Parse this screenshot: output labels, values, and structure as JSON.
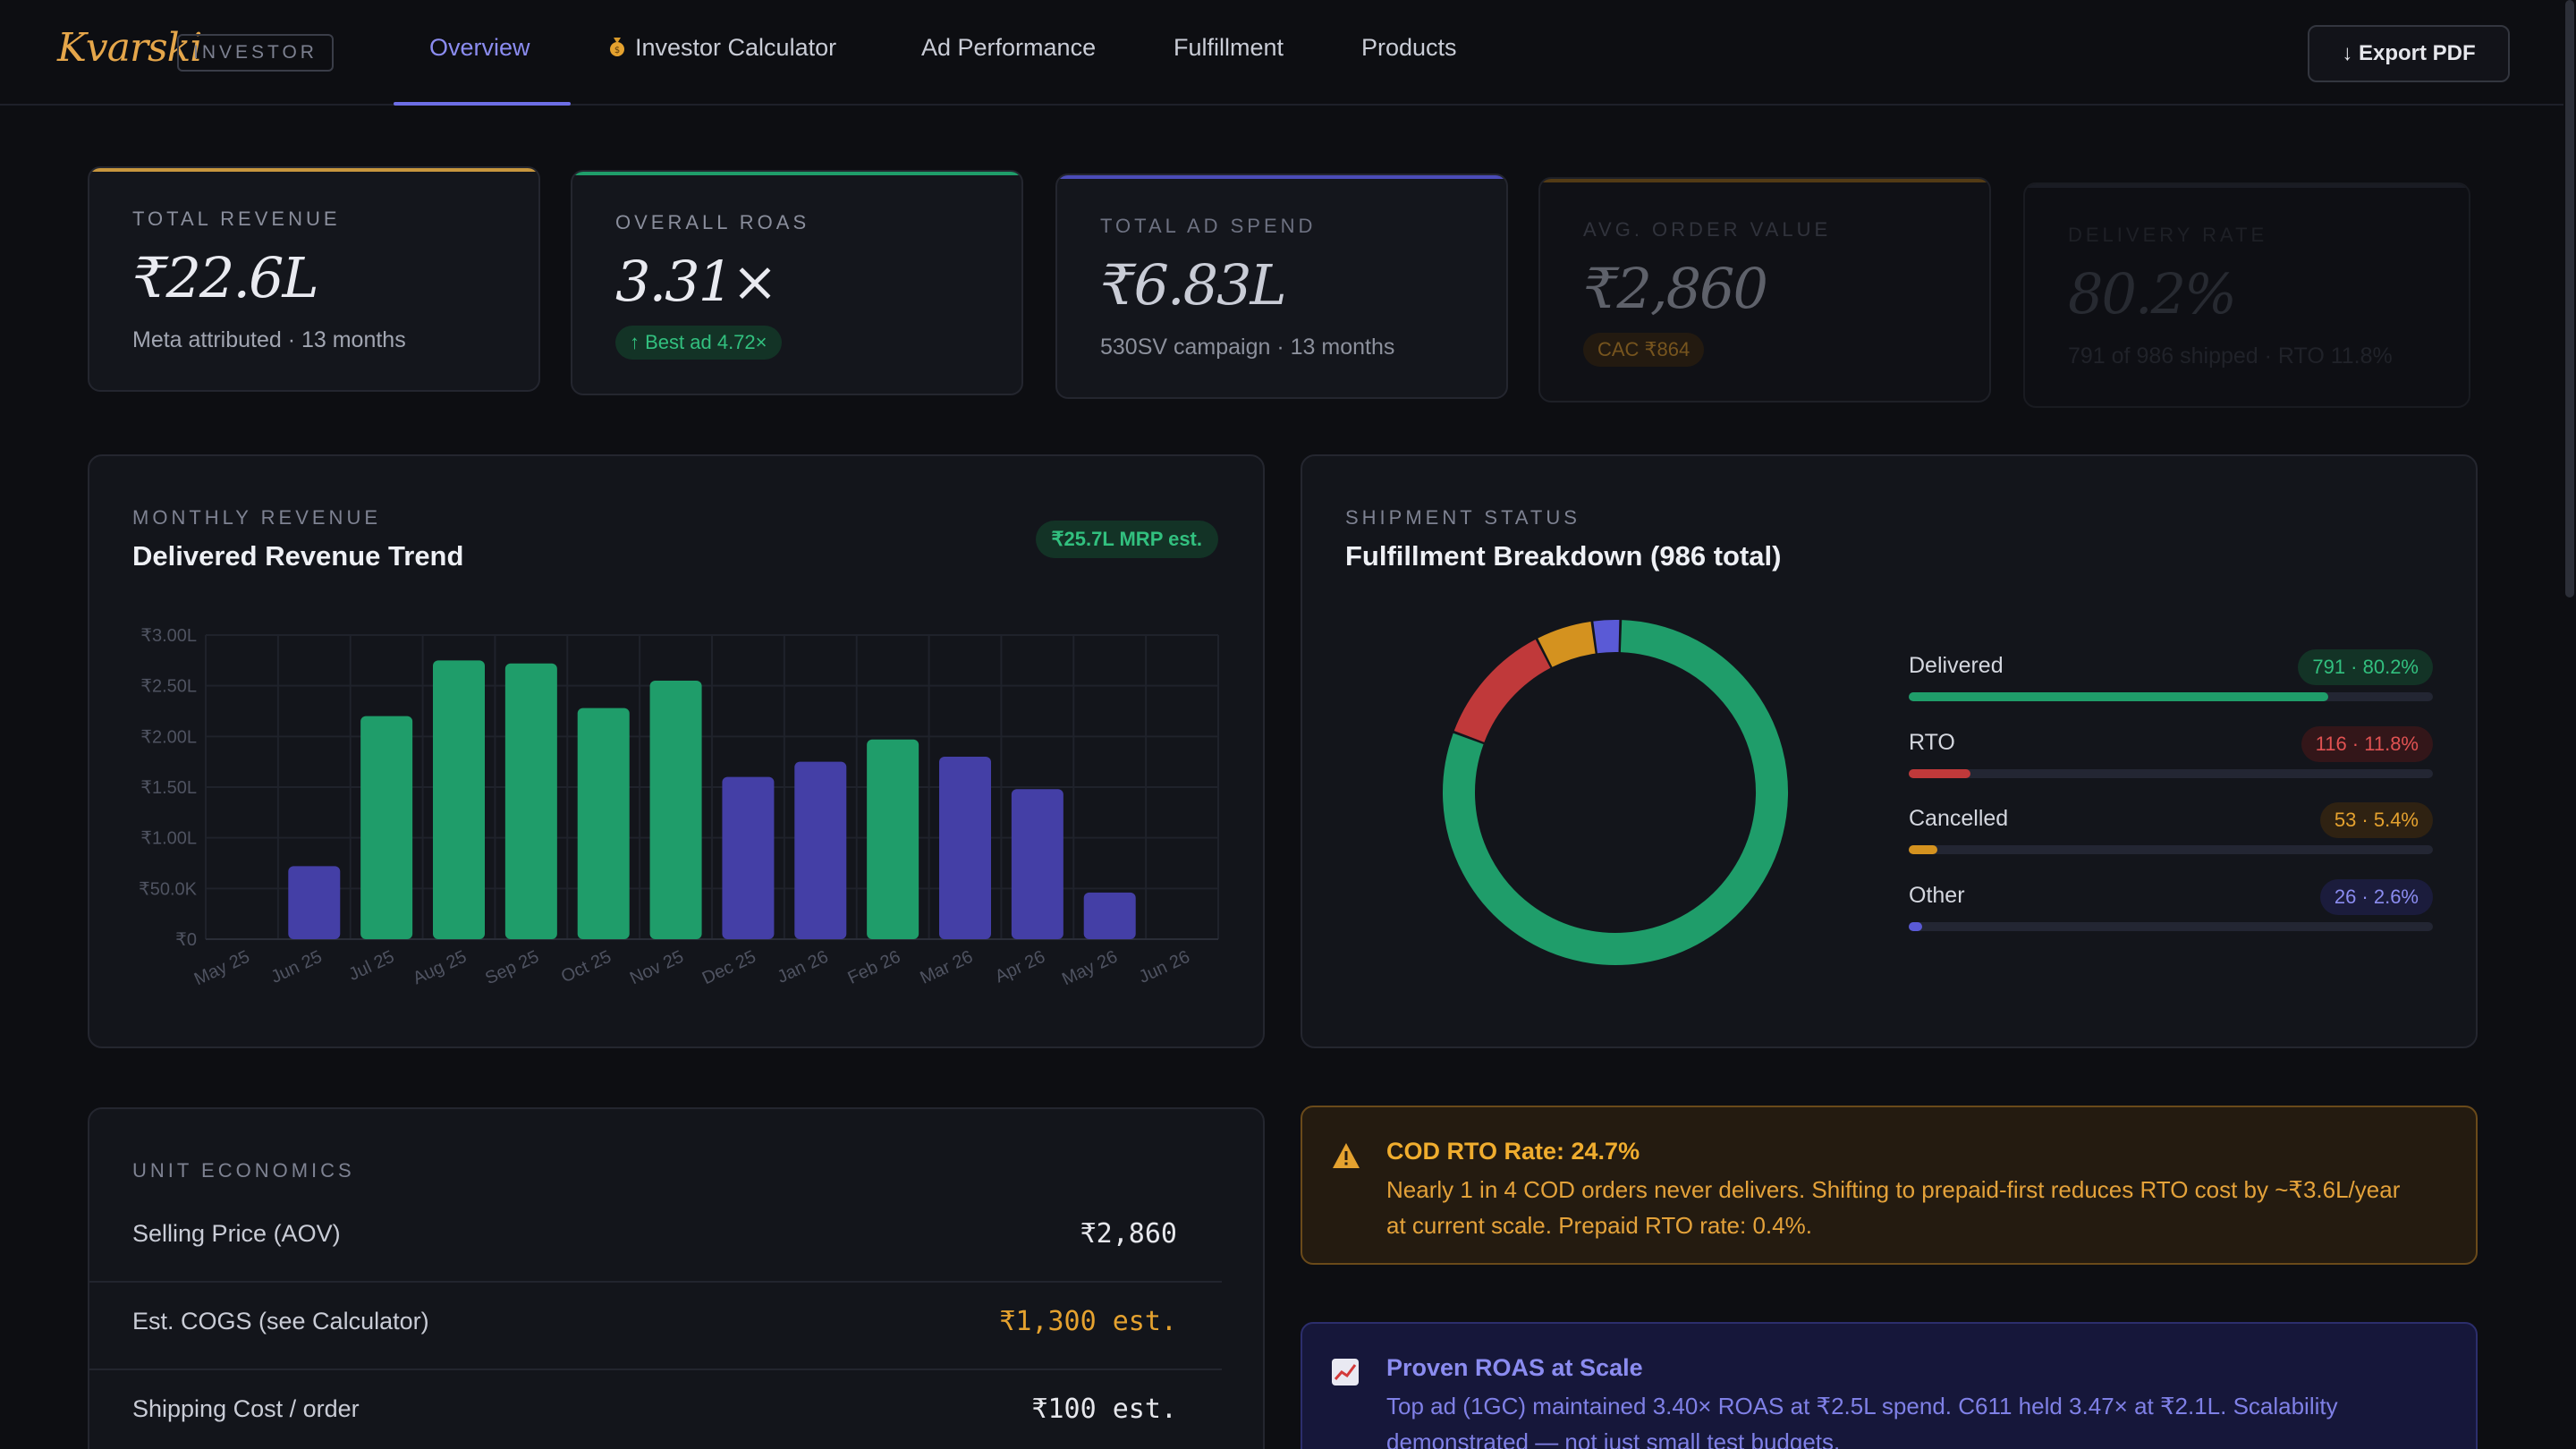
{
  "brand": {
    "logo": "Kvarski",
    "badge": "INVESTOR"
  },
  "nav": {
    "tabs": [
      {
        "label": "Overview"
      },
      {
        "label": "Investor Calculator",
        "icon": "money-bag-icon"
      },
      {
        "label": "Ad Performance"
      },
      {
        "label": "Fulfillment"
      },
      {
        "label": "Products"
      }
    ],
    "active_tab": "Overview",
    "export_label": "↓ Export PDF"
  },
  "kpis": [
    {
      "label": "TOTAL REVENUE",
      "value": "₹22.6L",
      "sub": "Meta attributed · 13 months",
      "accent": "#c7963e"
    },
    {
      "label": "OVERALL ROAS",
      "value": "3.31×",
      "pill": "↑ Best ad 4.72×",
      "accent": "#1f9d6a"
    },
    {
      "label": "TOTAL AD SPEND",
      "value": "₹6.83L",
      "sub": "530SV campaign · 13 months",
      "accent": "#4b4cb8"
    },
    {
      "label": "AVG. ORDER VALUE",
      "value": "₹2,860",
      "pill": "CAC ₹864",
      "accent": "#b07a22"
    },
    {
      "label": "DELIVERY RATE",
      "value": "80.2%",
      "sub": "791 of 986 shipped · RTO 11.8%",
      "accent": "#2a2d3a"
    }
  ],
  "revenue_panel": {
    "overline": "MONTHLY REVENUE",
    "title": "Delivered Revenue Trend",
    "pill": "₹25.7L MRP est."
  },
  "chart_data": {
    "type": "bar",
    "categories": [
      "May 25",
      "Jun 25",
      "Jul 25",
      "Aug 25",
      "Sep 25",
      "Oct 25",
      "Nov 25",
      "Dec 25",
      "Jan 26",
      "Feb 26",
      "Mar 26",
      "Apr 26",
      "May 26",
      "Jun 26"
    ],
    "values": [
      0,
      72000,
      220000,
      275000,
      272000,
      228000,
      255000,
      160000,
      175000,
      197000,
      180000,
      148000,
      46000,
      0
    ],
    "colors": [
      "#443fa6",
      "#443fa6",
      "#1f9d6a",
      "#1f9d6a",
      "#1f9d6a",
      "#1f9d6a",
      "#1f9d6a",
      "#443fa6",
      "#443fa6",
      "#1f9d6a",
      "#443fa6",
      "#443fa6",
      "#443fa6",
      "#443fa6"
    ],
    "ylim": [
      0,
      300000
    ],
    "yticks": [
      {
        "value": 0,
        "label": "₹0"
      },
      {
        "value": 50000,
        "label": "₹50.0K"
      },
      {
        "value": 100000,
        "label": "₹1.00L"
      },
      {
        "value": 150000,
        "label": "₹1.50L"
      },
      {
        "value": 200000,
        "label": "₹2.00L"
      },
      {
        "value": 250000,
        "label": "₹2.50L"
      },
      {
        "value": 300000,
        "label": "₹3.00L"
      }
    ],
    "grid": true,
    "legend": "none"
  },
  "fulfillment_panel": {
    "overline": "SHIPMENT STATUS",
    "title": "Fulfillment Breakdown (986 total)",
    "segments": [
      {
        "name": "Delivered",
        "badge": "791 · 80.2%",
        "count": 791,
        "pct": 80.2,
        "color": "#1f9d6a",
        "badge_bg": "#133326",
        "badge_fg": "#32c07f",
        "fill": 0.8
      },
      {
        "name": "RTO",
        "badge": "116 · 11.8%",
        "count": 116,
        "pct": 11.8,
        "color": "#c0393a",
        "badge_bg": "#331619",
        "badge_fg": "#e05252",
        "fill": 0.118
      },
      {
        "name": "Cancelled",
        "badge": "53 · 5.4%",
        "count": 53,
        "pct": 5.4,
        "color": "#d4921f",
        "badge_bg": "#2f2212",
        "badge_fg": "#e5a22f",
        "fill": 0.054
      },
      {
        "name": "Other",
        "badge": "26 · 2.6%",
        "count": 26,
        "pct": 2.6,
        "color": "#5a5ad6",
        "badge_bg": "#1b1c3c",
        "badge_fg": "#8b8cf0",
        "fill": 0.026
      }
    ]
  },
  "unit_economics": {
    "overline": "UNIT ECONOMICS",
    "rows": [
      {
        "label": "Selling Price (AOV)",
        "value": "₹2,860",
        "color": "#e6e7ec"
      },
      {
        "label": "Est. COGS (see Calculator)",
        "value": "₹1,300 est.",
        "color": "#e5a22f"
      },
      {
        "label": "Shipping Cost / order",
        "value": "₹100 est.",
        "color": "#e6e7ec"
      }
    ]
  },
  "alerts": {
    "warning": {
      "icon": "warning-icon",
      "title": "COD RTO Rate: 24.7%",
      "body": "Nearly 1 in 4 COD orders never delivers. Shifting to prepaid-first reduces RTO cost by ~₹3.6L/year at current scale. Prepaid RTO rate: 0.4%."
    },
    "info": {
      "icon": "chart-up-icon",
      "title": "Proven ROAS at Scale",
      "body": "Top ad (1GC) maintained 3.40× ROAS at ₹2.5L spend. C611 held 3.47× at ₹2.1L. Scalability demonstrated — not just small test budgets."
    }
  }
}
